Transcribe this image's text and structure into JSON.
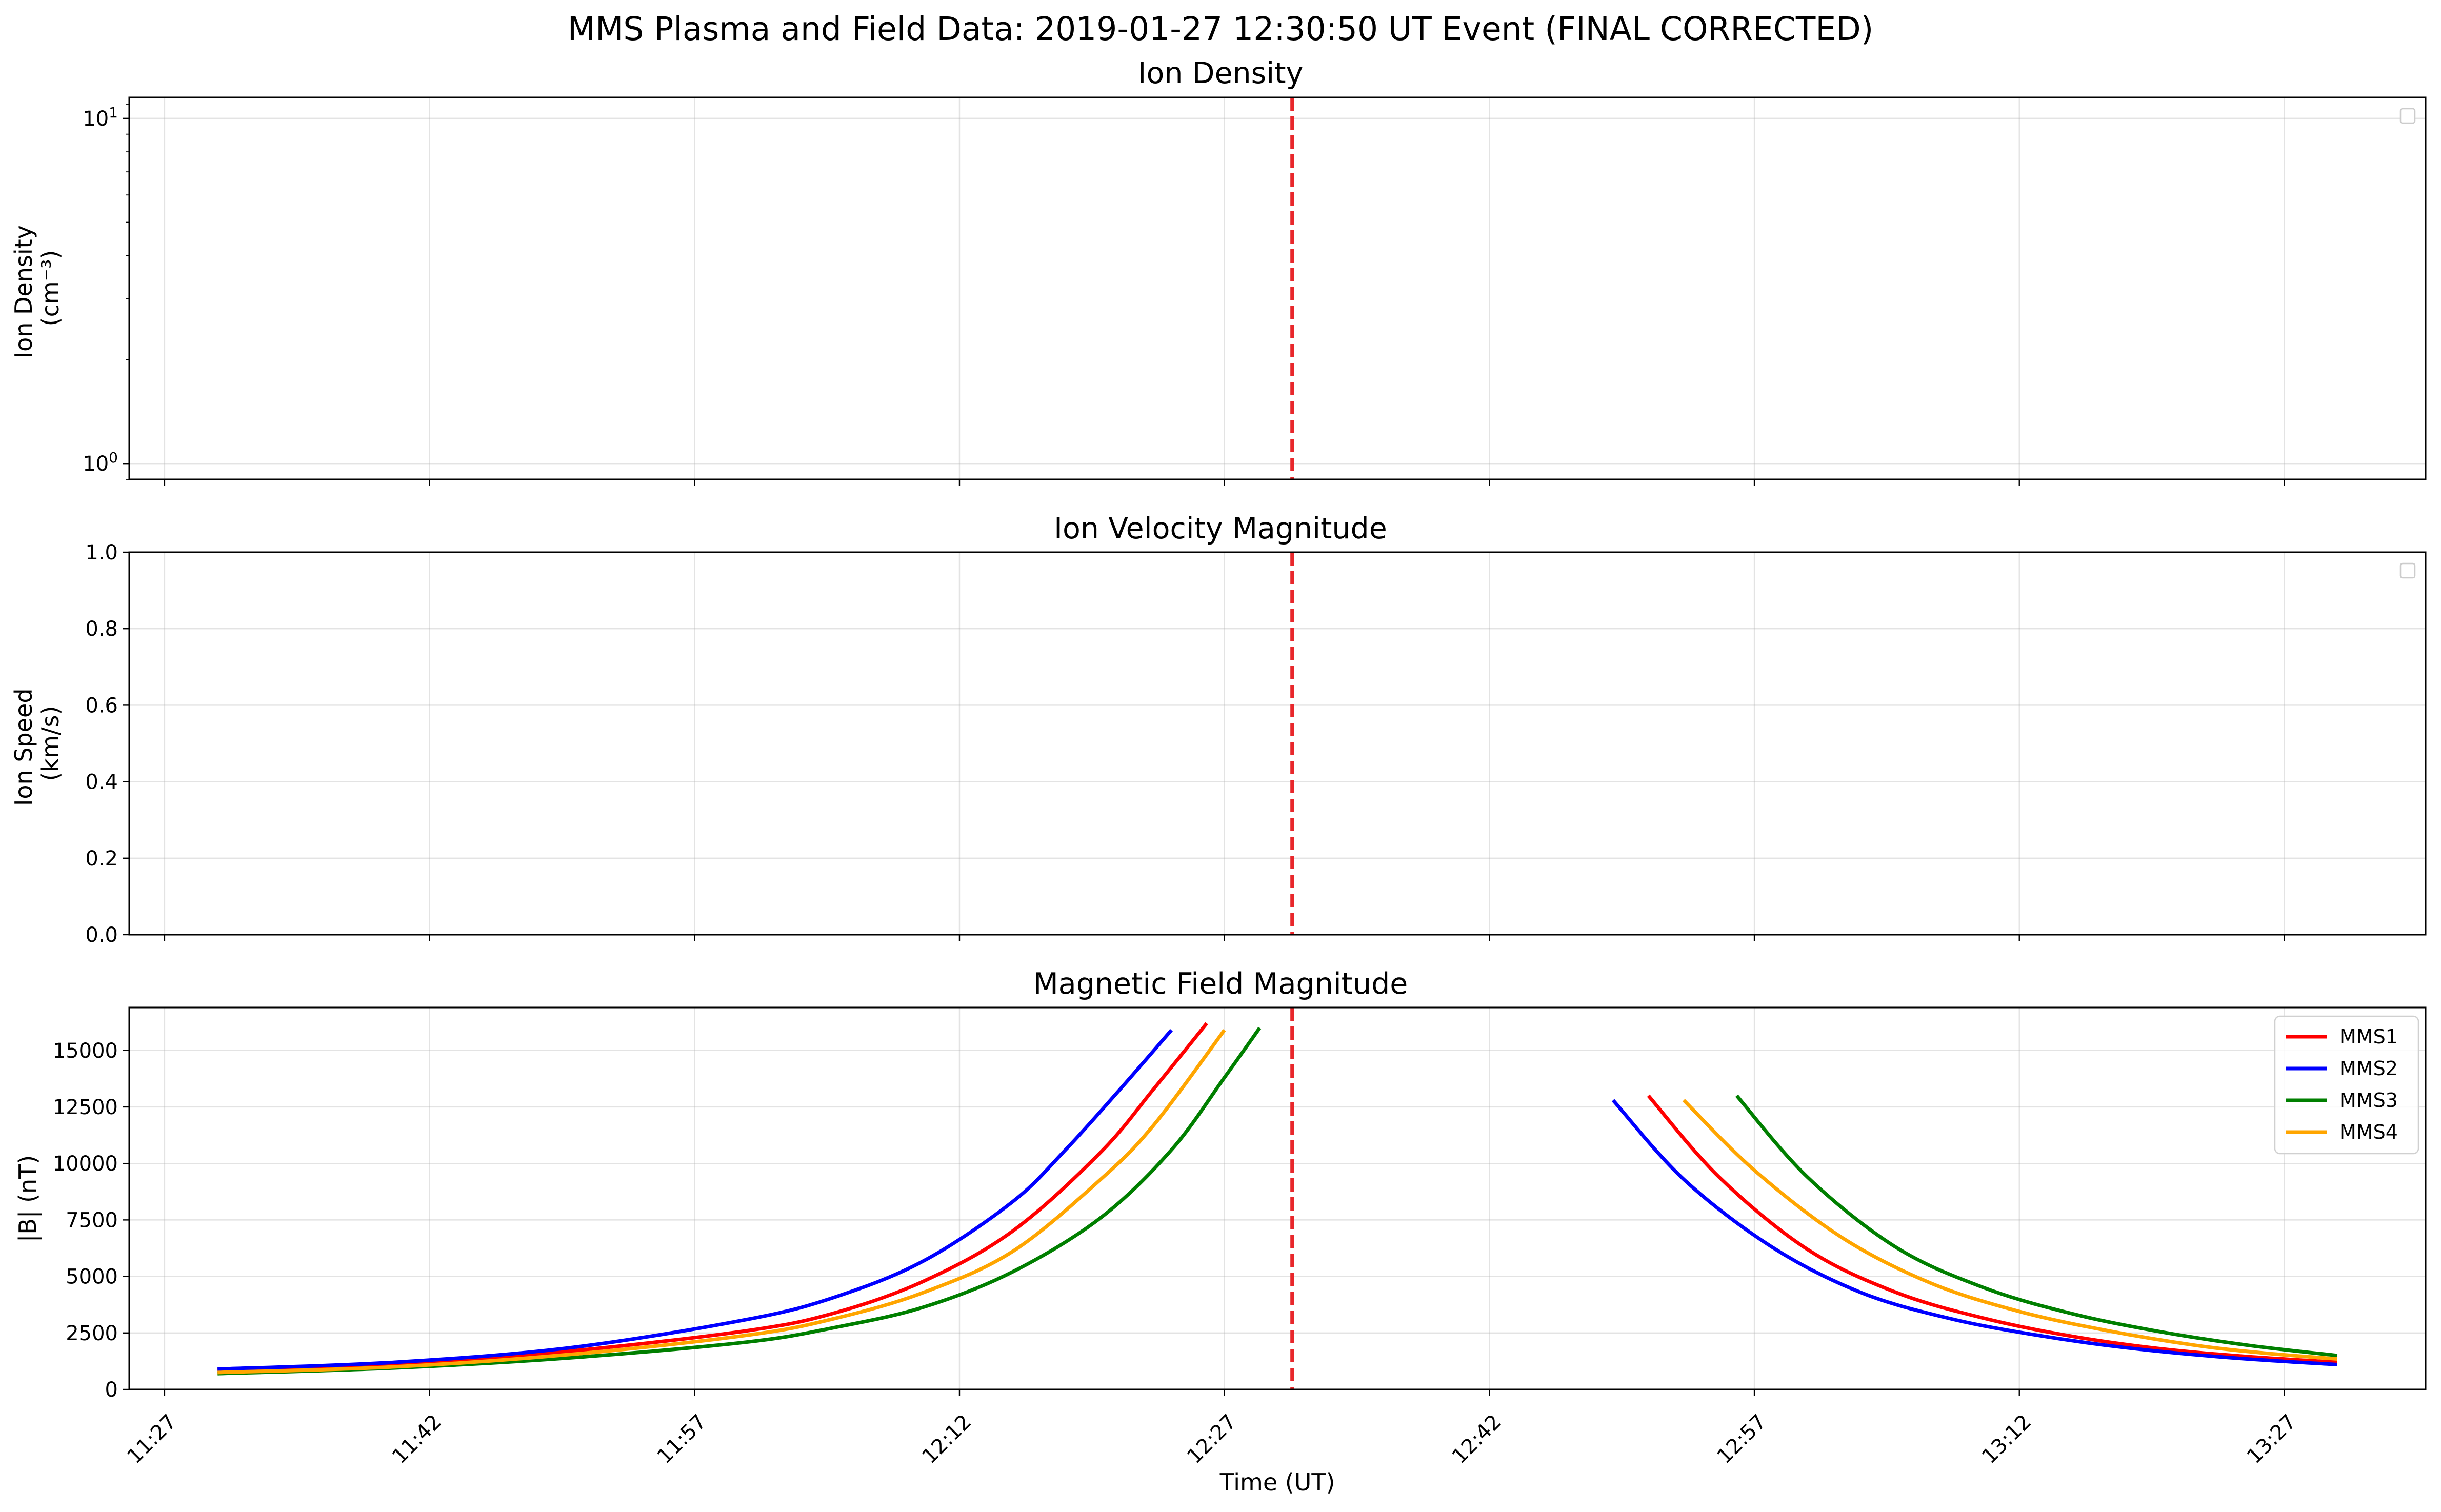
{
  "title": "MMS Plasma and Field Data: 2019-01-27 12:30:50 UT Event (FINAL CORRECTED)",
  "event_line_color": "#e8272b",
  "chart_data": [
    {
      "type": "line",
      "title": "Ion Density",
      "ylabel": [
        "Ion Density",
        "(cm⁻³)"
      ],
      "yscale": "log",
      "ylim": [
        0.9,
        11.5
      ],
      "yticks": [
        {
          "value": 1,
          "base": "10",
          "exp": "0"
        },
        {
          "value": 10,
          "base": "10",
          "exp": "1"
        }
      ],
      "grid": true,
      "legend": "empty, top-right",
      "event_time": "12:30:50",
      "series": []
    },
    {
      "type": "line",
      "title": "Ion Velocity Magnitude",
      "ylabel": [
        "Ion Speed",
        "(km/s)"
      ],
      "ylim": [
        0,
        1
      ],
      "yticks": [
        "0.0",
        "0.2",
        "0.4",
        "0.6",
        "0.8",
        "1.0"
      ],
      "grid": true,
      "legend": "empty, top-right",
      "event_time": "12:30:50",
      "series": []
    },
    {
      "type": "line",
      "title": "Magnetic Field Magnitude",
      "xlabel": "Time (UT)",
      "ylabel": [
        "|B| (nT)"
      ],
      "ylim": [
        0,
        16900
      ],
      "yticks": [
        "0",
        "2500",
        "5000",
        "7500",
        "10000",
        "12500",
        "15000"
      ],
      "xlim": [
        "11:25",
        "13:35"
      ],
      "xticks": [
        "11:27",
        "11:42",
        "11:57",
        "12:12",
        "12:27",
        "12:42",
        "12:57",
        "13:12",
        "13:27"
      ],
      "grid": true,
      "legend": "top-right",
      "event_time": "12:30:50",
      "series": [
        {
          "name": "MMS1",
          "color": "#ff0000",
          "segments": [
            {
              "x": [
                "11:30",
                "11:40",
                "11:50",
                "12:00",
                "12:05",
                "12:10",
                "12:15",
                "12:20",
                "12:23",
                "12:26"
              ],
              "y": [
                850,
                1100,
                1700,
                2600,
                3400,
                4800,
                7000,
                10500,
                13300,
                16200
              ]
            },
            {
              "x": [
                "12:51",
                "12:55",
                "13:00",
                "13:05",
                "13:10",
                "13:15",
                "13:20",
                "13:25",
                "13:30"
              ],
              "y": [
                13000,
                9400,
                6200,
                4300,
                3150,
                2350,
                1800,
                1450,
                1200
              ]
            }
          ]
        },
        {
          "name": "MMS2",
          "color": "#0000ff",
          "segments": [
            {
              "x": [
                "11:30",
                "11:40",
                "11:50",
                "12:00",
                "12:05",
                "12:10",
                "12:15",
                "12:18",
                "12:21",
                "12:24"
              ],
              "y": [
                900,
                1200,
                1850,
                3100,
                4100,
                5700,
                8300,
                10600,
                13200,
                15900
              ]
            },
            {
              "x": [
                "12:49",
                "12:53",
                "12:58",
                "13:03",
                "13:08",
                "13:13",
                "13:18",
                "13:24",
                "13:30"
              ],
              "y": [
                12800,
                9300,
                6300,
                4300,
                3150,
                2400,
                1850,
                1400,
                1100
              ]
            }
          ]
        },
        {
          "name": "MMS3",
          "color": "#007f00",
          "segments": [
            {
              "x": [
                "11:30",
                "11:40",
                "11:50",
                "12:00",
                "12:05",
                "12:10",
                "12:15",
                "12:20",
                "12:24",
                "12:27",
                "12:29"
              ],
              "y": [
                700,
                950,
                1400,
                2100,
                2750,
                3650,
                5200,
                7600,
                10600,
                13800,
                16000
              ]
            },
            {
              "x": [
                "12:56",
                "13:00",
                "13:05",
                "13:10",
                "13:15",
                "13:20",
                "13:25",
                "13:30"
              ],
              "y": [
                13000,
                9400,
                6300,
                4500,
                3350,
                2550,
                1950,
                1500
              ]
            }
          ]
        },
        {
          "name": "MMS4",
          "color": "#ffa500",
          "segments": [
            {
              "x": [
                "11:30",
                "11:40",
                "11:50",
                "12:00",
                "12:05",
                "12:10",
                "12:15",
                "12:20",
                "12:23",
                "12:27"
              ],
              "y": [
                750,
                1000,
                1550,
                2400,
                3150,
                4300,
                6100,
                9300,
                11700,
                15900
              ]
            },
            {
              "x": [
                "12:53",
                "12:57",
                "13:02",
                "13:07",
                "13:12",
                "13:17",
                "13:22",
                "13:26",
                "13:30"
              ],
              "y": [
                12800,
                9700,
                6700,
                4700,
                3450,
                2600,
                1950,
                1600,
                1350
              ]
            }
          ]
        }
      ]
    }
  ]
}
